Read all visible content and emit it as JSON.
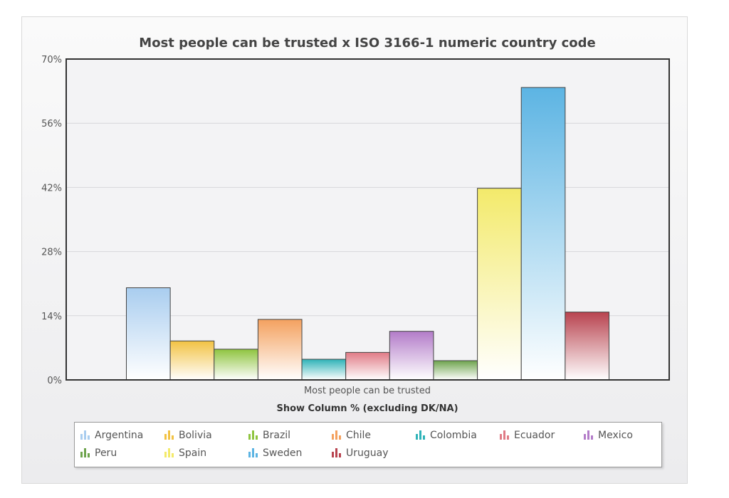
{
  "chart_data": {
    "type": "bar",
    "title": "Most people can be trusted x ISO 3166-1 numeric country code",
    "xlabel": "Most people can be trusted",
    "subtitle": "Show Column % (excluding DK/NA)",
    "ylabel": "",
    "ylim": [
      0,
      70
    ],
    "yticks": [
      "0%",
      "14%",
      "28%",
      "42%",
      "56%",
      "70%"
    ],
    "categories": [
      "Most people can be trusted"
    ],
    "series": [
      {
        "name": "Argentina",
        "values": [
          20.1
        ],
        "color": "#a9cdef"
      },
      {
        "name": "Bolivia",
        "values": [
          8.5
        ],
        "color": "#f2c243"
      },
      {
        "name": "Brazil",
        "values": [
          6.7
        ],
        "color": "#8fc43f"
      },
      {
        "name": "Chile",
        "values": [
          13.2
        ],
        "color": "#f4a15f"
      },
      {
        "name": "Colombia",
        "values": [
          4.5
        ],
        "color": "#2fb3b8"
      },
      {
        "name": "Ecuador",
        "values": [
          6.0
        ],
        "color": "#e07b86"
      },
      {
        "name": "Mexico",
        "values": [
          10.6
        ],
        "color": "#b37cc9"
      },
      {
        "name": "Peru",
        "values": [
          4.2
        ],
        "color": "#6ea44d"
      },
      {
        "name": "Spain",
        "values": [
          41.8
        ],
        "color": "#f3ea6a"
      },
      {
        "name": "Sweden",
        "values": [
          63.8
        ],
        "color": "#5cb4e3"
      },
      {
        "name": "Uruguay",
        "values": [
          14.8
        ],
        "color": "#b8434f"
      }
    ],
    "grid": true,
    "legend": "bottom"
  }
}
